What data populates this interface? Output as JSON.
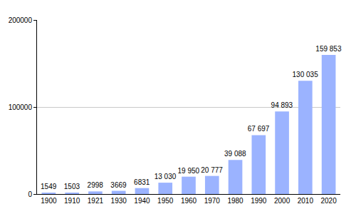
{
  "chart_data": {
    "type": "bar",
    "categories": [
      "1900",
      "1910",
      "1921",
      "1930",
      "1940",
      "1950",
      "1960",
      "1970",
      "1980",
      "1990",
      "2000",
      "2010",
      "2020"
    ],
    "values": [
      1549,
      1503,
      2998,
      3669,
      6831,
      13030,
      19950,
      20777,
      39088,
      67697,
      94893,
      130035,
      159853
    ],
    "value_labels": [
      "1549",
      "1503",
      "2998",
      "3669",
      "6831",
      "13 030",
      "19 950",
      "20 777",
      "39 088",
      "67 697",
      "94 893",
      "130 035",
      "159 853"
    ],
    "data_labels": true,
    "color": "#9bb3ff",
    "ylim": [
      0,
      200000
    ],
    "yticks": [
      0,
      100000,
      200000
    ],
    "grid": true
  }
}
